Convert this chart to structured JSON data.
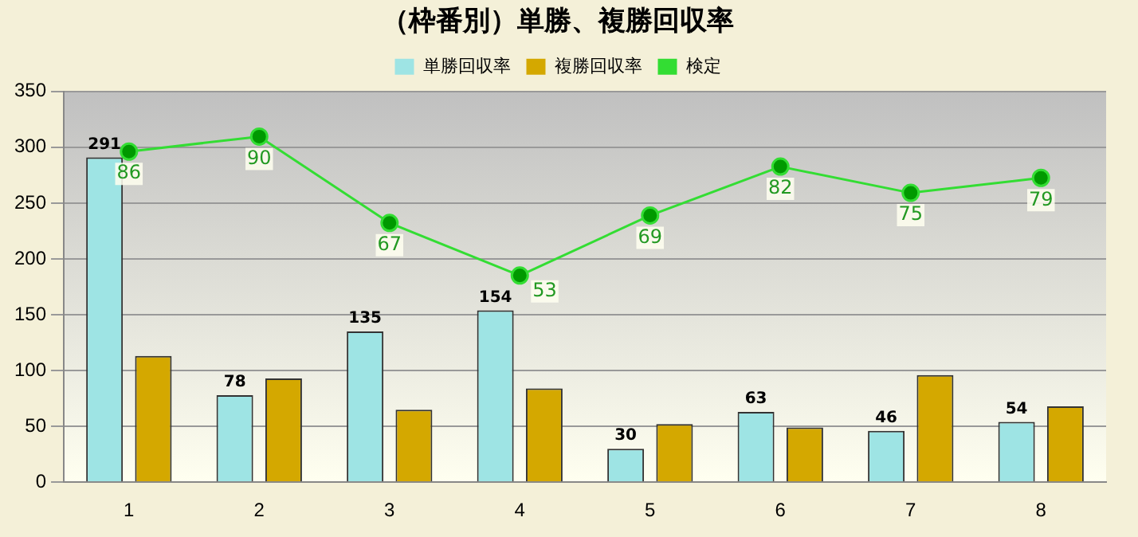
{
  "chart_data": {
    "type": "bar",
    "title": "（枠番別）単勝、複勝回収率",
    "categories": [
      "1",
      "2",
      "3",
      "4",
      "5",
      "6",
      "7",
      "8"
    ],
    "series": [
      {
        "name": "単勝回収率",
        "color": "#9ee4e4",
        "values": [
          291,
          78,
          135,
          154,
          30,
          63,
          46,
          54
        ],
        "value_labels": [
          "291",
          "78",
          "135",
          "154",
          "30",
          "63",
          "46",
          "54"
        ]
      },
      {
        "name": "複勝回収率",
        "color": "#d4a800",
        "values": [
          113,
          93,
          65,
          84,
          52,
          49,
          96,
          68
        ]
      },
      {
        "name": "検定",
        "type": "line",
        "axis": "y2",
        "color": "#33dd33",
        "marker": "circle",
        "values": [
          86,
          90,
          67,
          53,
          69,
          82,
          75,
          79
        ],
        "value_labels": [
          "86",
          "90",
          "67",
          "53",
          "69",
          "82",
          "75",
          "79"
        ]
      }
    ],
    "ylim": [
      0,
      350
    ],
    "yticks": [
      0,
      50,
      100,
      150,
      200,
      250,
      300,
      350
    ],
    "y2lim": [
      -2,
      102
    ],
    "grid": "y",
    "legend": "top"
  }
}
